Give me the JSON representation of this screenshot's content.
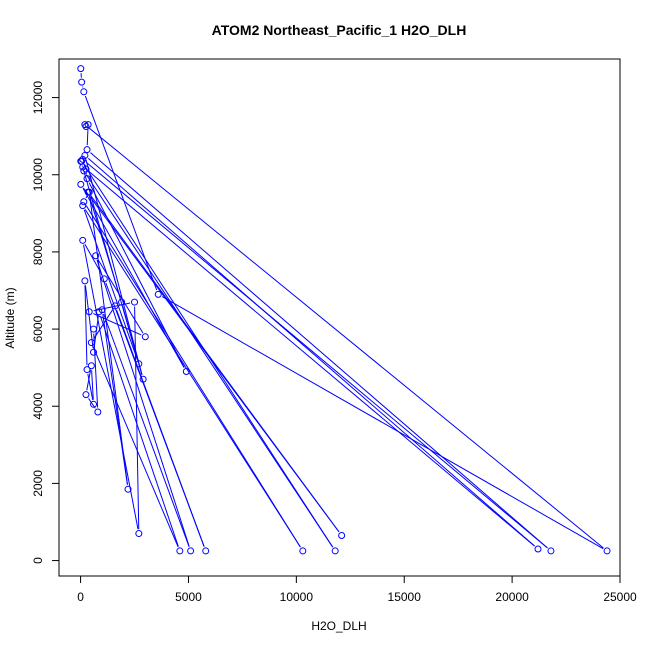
{
  "chart_data": {
    "type": "line",
    "title": "ATOM2 Northeast_Pacific_1 H2O_DLH",
    "xlabel": "H2O_DLH",
    "ylabel": "Altitude (m)",
    "xlim": [
      -1000,
      25000
    ],
    "ylim": [
      -400,
      13000
    ],
    "x_ticks": [
      0,
      5000,
      10000,
      15000,
      20000,
      25000
    ],
    "y_ticks": [
      0,
      2000,
      4000,
      6000,
      8000,
      10000,
      12000
    ],
    "x_tick_labels": [
      "0",
      "5000",
      "10000",
      "15000",
      "20000",
      "25000"
    ],
    "y_tick_labels": [
      "0",
      "2000",
      "4000",
      "6000",
      "8000",
      "10000",
      "12000"
    ],
    "series_color": "#0000ff",
    "marker": "open-circle",
    "series": [
      {
        "points": [
          [
            10,
            12750
          ],
          [
            50,
            12400
          ],
          [
            150,
            12150
          ],
          [
            3600,
            6900
          ],
          [
            24400,
            250
          ],
          [
            200,
            11300
          ],
          [
            250,
            11250
          ],
          [
            350,
            11300
          ],
          [
            300,
            10650
          ],
          [
            21800,
            250
          ],
          [
            100,
            10400
          ],
          [
            10,
            10350
          ],
          [
            150,
            10100
          ],
          [
            11800,
            250
          ],
          [
            50,
            10350
          ],
          [
            100,
            10200
          ],
          [
            2900,
            4700
          ],
          [
            200,
            10500
          ],
          [
            21200,
            300
          ],
          [
            250,
            10150
          ],
          [
            300,
            9900
          ],
          [
            4900,
            4900
          ],
          [
            10,
            9750
          ],
          [
            12100,
            650
          ],
          [
            350,
            9550
          ],
          [
            1900,
            6700
          ],
          [
            2700,
            5100
          ],
          [
            100,
            9200
          ],
          [
            10300,
            250
          ],
          [
            150,
            9300
          ],
          [
            400,
            9550
          ],
          [
            2200,
            1850
          ],
          [
            1000,
            6500
          ],
          [
            5100,
            250
          ],
          [
            700,
            7900
          ],
          [
            3000,
            5800
          ],
          [
            400,
            6450
          ],
          [
            2500,
            6700
          ],
          [
            2700,
            700
          ],
          [
            100,
            8300
          ],
          [
            1100,
            7300
          ],
          [
            5800,
            250
          ],
          [
            1600,
            6600
          ],
          [
            500,
            5650
          ],
          [
            4600,
            250
          ],
          [
            850,
            6450
          ],
          [
            600,
            5400
          ],
          [
            200,
            7250
          ],
          [
            300,
            4950
          ],
          [
            600,
            4050
          ],
          [
            500,
            5050
          ],
          [
            250,
            4300
          ],
          [
            800,
            3850
          ],
          [
            600,
            6000
          ]
        ]
      }
    ]
  }
}
